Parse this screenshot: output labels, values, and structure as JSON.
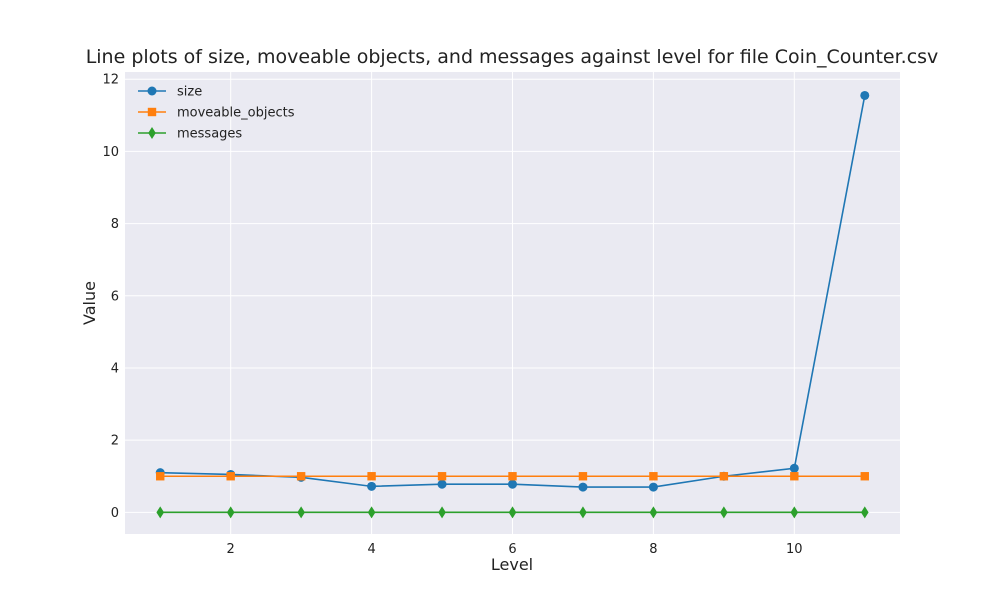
{
  "chart_data": {
    "type": "line",
    "title": "Line plots of size, moveable objects, and messages against level for file Coin_Counter.csv",
    "xlabel": "Level",
    "ylabel": "Value",
    "xlim": [
      0.5,
      11.5
    ],
    "ylim": [
      -0.6,
      12.2
    ],
    "x_ticks": [
      2,
      4,
      6,
      8,
      10
    ],
    "y_ticks": [
      0,
      2,
      4,
      6,
      8,
      10,
      12
    ],
    "grid": true,
    "legend_position": "top-left",
    "x": [
      1,
      2,
      3,
      4,
      5,
      6,
      7,
      8,
      9,
      10,
      11
    ],
    "series": [
      {
        "name": "size",
        "color": "#1f77b4",
        "marker": "circle",
        "values": [
          1.1,
          1.05,
          0.97,
          0.72,
          0.78,
          0.78,
          0.7,
          0.7,
          1.0,
          1.22,
          11.55
        ]
      },
      {
        "name": "moveable_objects",
        "color": "#ff7f0e",
        "marker": "square",
        "values": [
          1,
          1,
          1,
          1,
          1,
          1,
          1,
          1,
          1,
          1,
          1
        ]
      },
      {
        "name": "messages",
        "color": "#2ca02c",
        "marker": "diamond",
        "values": [
          0,
          0,
          0,
          0,
          0,
          0,
          0,
          0,
          0,
          0,
          0
        ]
      }
    ],
    "background_color": "#eaeaf2",
    "grid_color": "#ffffff"
  }
}
